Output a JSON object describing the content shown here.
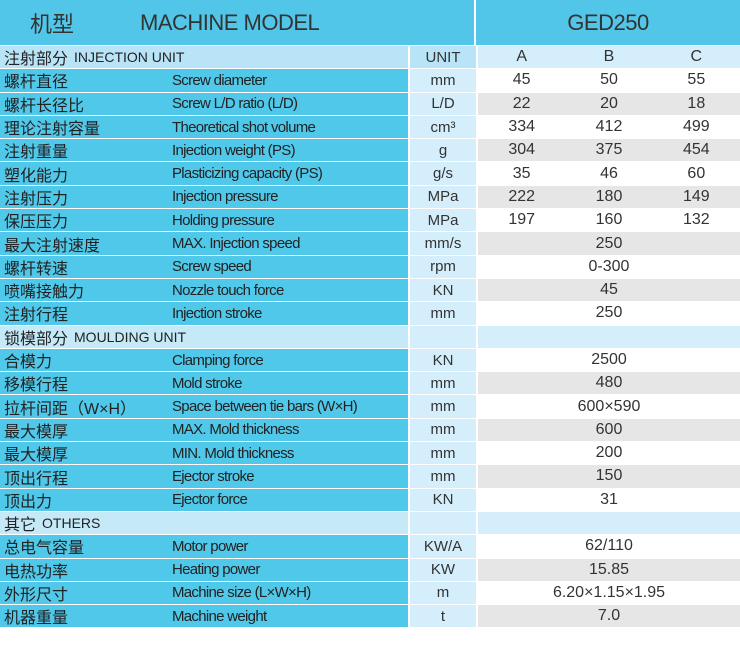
{
  "header": {
    "cn": "机型",
    "en": "MACHINE MODEL",
    "model": "GED250"
  },
  "colors": {
    "header": "#52c6e8",
    "label_cell": "#50c8ea",
    "unit_cell": "#d4eefb",
    "alt_row": "#e6e6e6"
  },
  "sections": [
    {
      "cn": "注射部分",
      "en": "INJECTION UNIT",
      "unit_header": "UNIT",
      "columns": [
        "A",
        "B",
        "C"
      ],
      "rows": [
        {
          "cn": "螺杆直径",
          "en": "Screw diameter",
          "unit": "mm",
          "values": [
            "45",
            "50",
            "55"
          ]
        },
        {
          "cn": "螺杆长径比",
          "en": "Screw L/D ratio (L/D)",
          "unit": "L/D",
          "values": [
            "22",
            "20",
            "18"
          ]
        },
        {
          "cn": "理论注射容量",
          "en": "Theoretical shot volume",
          "unit": "cm³",
          "values": [
            "334",
            "412",
            "499"
          ]
        },
        {
          "cn": "注射重量",
          "en": "Injection weight (PS)",
          "unit": "g",
          "values": [
            "304",
            "375",
            "454"
          ]
        },
        {
          "cn": "塑化能力",
          "en": "Plasticizing capacity (PS)",
          "unit": "g/s",
          "values": [
            "35",
            "46",
            "60"
          ]
        },
        {
          "cn": "注射压力",
          "en": "Injection pressure",
          "unit": "MPa",
          "values": [
            "222",
            "180",
            "149"
          ]
        },
        {
          "cn": "保压压力",
          "en": "Holding pressure",
          "unit": "MPa",
          "values": [
            "197",
            "160",
            "132"
          ]
        },
        {
          "cn": "最大注射速度",
          "en": "MAX. Injection speed",
          "unit": "mm/s",
          "values": [
            "250"
          ]
        },
        {
          "cn": "螺杆转速",
          "en": "Screw speed",
          "unit": "rpm",
          "values": [
            "0-300"
          ]
        },
        {
          "cn": "喷嘴接触力",
          "en": "Nozzle touch force",
          "unit": "KN",
          "values": [
            "45"
          ]
        },
        {
          "cn": "注射行程",
          "en": "Injection stroke",
          "unit": "mm",
          "values": [
            "250"
          ]
        }
      ]
    },
    {
      "cn": "锁模部分",
      "en": "MOULDING UNIT",
      "rows": [
        {
          "cn": "合模力",
          "en": "Clamping force",
          "unit": "KN",
          "values": [
            "2500"
          ]
        },
        {
          "cn": "移模行程",
          "en": "Mold stroke",
          "unit": "mm",
          "values": [
            "480"
          ]
        },
        {
          "cn": "拉杆间距（W×H）",
          "en": "Space between tie bars (W×H)",
          "unit": "mm",
          "values": [
            "600×590"
          ]
        },
        {
          "cn": "最大模厚",
          "en": "MAX. Mold thickness",
          "unit": "mm",
          "values": [
            "600"
          ]
        },
        {
          "cn": "最大模厚",
          "en": "MIN. Mold thickness",
          "unit": "mm",
          "values": [
            "200"
          ]
        },
        {
          "cn": "顶出行程",
          "en": "Ejector stroke",
          "unit": "mm",
          "values": [
            "150"
          ]
        },
        {
          "cn": "顶出力",
          "en": "Ejector force",
          "unit": "KN",
          "values": [
            "31"
          ]
        }
      ]
    },
    {
      "cn": "其它",
      "en": "OTHERS",
      "rows": [
        {
          "cn": "总电气容量",
          "en": "Motor power",
          "unit": "KW/A",
          "values": [
            "62/110"
          ]
        },
        {
          "cn": "电热功率",
          "en": "Heating power",
          "unit": "KW",
          "values": [
            "15.85"
          ]
        },
        {
          "cn": "外形尺寸",
          "en": "Machine size (L×W×H)",
          "unit": "m",
          "values": [
            "6.20×1.15×1.95"
          ]
        },
        {
          "cn": "机器重量",
          "en": "Machine weight",
          "unit": "t",
          "values": [
            "7.0"
          ]
        }
      ]
    }
  ]
}
